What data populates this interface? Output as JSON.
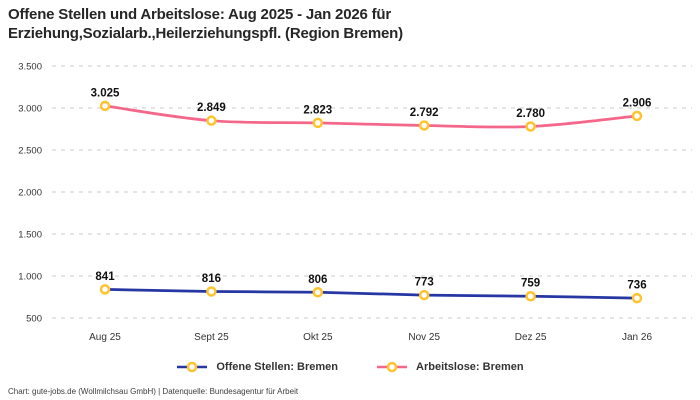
{
  "header": {
    "title_line1": "Offene Stellen und Arbeitslose: Aug 2025 - Jan 2026 für",
    "title_line2": "Erziehung,Sozialarb.,Heilerziehungspfl. (Region Bremen)"
  },
  "footer": {
    "credit": "Chart: gute-jobs.de (Wollmilchsau GmbH) | Datenquelle: Bundesagentur für Arbeit"
  },
  "colors": {
    "series_offene": "#2637A4",
    "series_arbeitslose": "#F4678A",
    "marker_ring": "#FFC32E",
    "marker_fill": "#FFFFFF",
    "grid": "#CBCBCB",
    "axis_text": "#333333",
    "label_text": "#111111"
  },
  "chart_data": {
    "type": "line",
    "title": "Offene Stellen und Arbeitslose: Aug 2025 - Jan 2026 für Erziehung,Sozialarb.,Heilerziehungspfl. (Region Bremen)",
    "categories": [
      "Aug 25",
      "Sept 25",
      "Okt 25",
      "Nov 25",
      "Dez 25",
      "Jan 26"
    ],
    "series": [
      {
        "name": "Offene Stellen: Bremen",
        "color_key": "series_offene",
        "values": [
          841,
          816,
          806,
          773,
          759,
          736
        ],
        "labels": [
          "841",
          "816",
          "806",
          "773",
          "759",
          "736"
        ]
      },
      {
        "name": "Arbeitslose: Bremen",
        "color_key": "series_arbeitslose",
        "values": [
          3025,
          2849,
          2823,
          2792,
          2780,
          2906
        ],
        "labels": [
          "3.025",
          "2.849",
          "2.823",
          "2.792",
          "2.780",
          "2.906"
        ]
      }
    ],
    "ylim": [
      500,
      3500
    ],
    "yticks": [
      500,
      1000,
      1500,
      2000,
      2500,
      3000,
      3500
    ],
    "ytick_labels": [
      "500",
      "1.000",
      "1.500",
      "2.000",
      "2.500",
      "3.000",
      "3.500"
    ],
    "grid": "dashed-horizontal",
    "legend_position": "bottom",
    "marker": "circle-open",
    "xlabel": "",
    "ylabel": ""
  }
}
